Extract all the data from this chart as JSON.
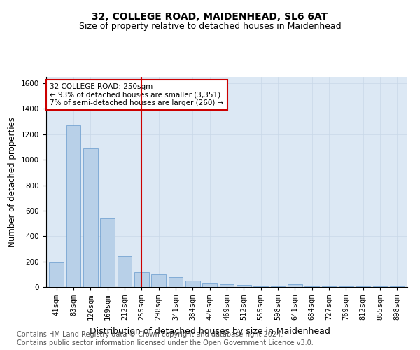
{
  "title": "32, COLLEGE ROAD, MAIDENHEAD, SL6 6AT",
  "subtitle": "Size of property relative to detached houses in Maidenhead",
  "xlabel": "Distribution of detached houses by size in Maidenhead",
  "ylabel": "Number of detached properties",
  "annotation_line1": "32 COLLEGE ROAD: 250sqm",
  "annotation_line2": "← 93% of detached houses are smaller (3,351)",
  "annotation_line3": "7% of semi-detached houses are larger (260) →",
  "footer_line1": "Contains HM Land Registry data © Crown copyright and database right 2024.",
  "footer_line2": "Contains public sector information licensed under the Open Government Licence v3.0.",
  "categories": [
    "41sqm",
    "83sqm",
    "126sqm",
    "169sqm",
    "212sqm",
    "255sqm",
    "298sqm",
    "341sqm",
    "384sqm",
    "426sqm",
    "469sqm",
    "512sqm",
    "555sqm",
    "598sqm",
    "641sqm",
    "684sqm",
    "727sqm",
    "769sqm",
    "812sqm",
    "855sqm",
    "898sqm"
  ],
  "values": [
    190,
    1270,
    1090,
    540,
    240,
    115,
    100,
    75,
    50,
    30,
    20,
    15,
    5,
    5,
    20,
    5,
    5,
    5,
    5,
    5,
    5
  ],
  "bar_color": "#b8d0e8",
  "bar_edge_color": "#6699cc",
  "vline_x_index": 5.0,
  "vline_color": "#cc0000",
  "annotation_box_color": "#cc0000",
  "annotation_box_fill": "#ffffff",
  "ylim_max": 1650,
  "yticks": [
    0,
    200,
    400,
    600,
    800,
    1000,
    1200,
    1400,
    1600
  ],
  "grid_color": "#c8d8e8",
  "bg_color": "#dce8f4",
  "title_fontsize": 10,
  "subtitle_fontsize": 9,
  "xlabel_fontsize": 9,
  "ylabel_fontsize": 8.5,
  "tick_fontsize": 7.5,
  "footer_fontsize": 7
}
